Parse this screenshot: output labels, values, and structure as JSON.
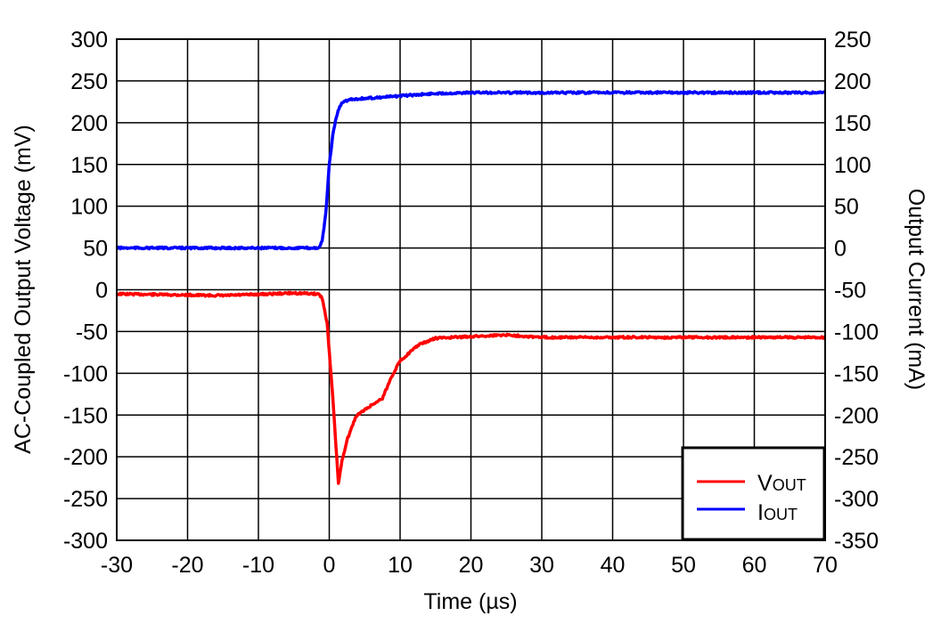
{
  "chart_data": {
    "type": "line",
    "title": "",
    "xlabel": "Time (µs)",
    "ylabel": "AC-Coupled Output Voltage (mV)",
    "y2label": "Output Current (mA)",
    "xlim": [
      -30,
      70
    ],
    "ylim": [
      -300,
      300
    ],
    "y2lim": [
      -350,
      250
    ],
    "xticks": [
      -30,
      -20,
      -10,
      0,
      10,
      20,
      30,
      40,
      50,
      60,
      70
    ],
    "yticks": [
      -300,
      -250,
      -200,
      -150,
      -100,
      -50,
      0,
      50,
      100,
      150,
      200,
      250,
      300
    ],
    "y2ticks": [
      -350,
      -300,
      -250,
      -200,
      -150,
      -100,
      -50,
      0,
      50,
      100,
      150,
      200,
      250
    ],
    "grid": true,
    "legend_position": "bottom-right",
    "series": [
      {
        "name": "VOUT",
        "name_main": "V",
        "name_sub": "OUT",
        "axis": "left",
        "color": "#ff0000",
        "x": [
          -30,
          -15,
          -5,
          -1.5,
          -1,
          -0.3,
          0.5,
          1.3,
          1.8,
          2.5,
          3.8,
          6,
          7.5,
          8.8,
          10,
          12.6,
          15,
          20,
          25,
          30,
          70
        ],
        "y": [
          -5,
          -7,
          -4,
          -5,
          -10,
          -40,
          -130,
          -232,
          -205,
          -180,
          -151,
          -138,
          -130,
          -104,
          -85,
          -66,
          -58,
          -56,
          -54,
          -57,
          -57
        ]
      },
      {
        "name": "IOUT",
        "name_main": "I",
        "name_sub": "OUT",
        "axis": "right",
        "color": "#0000ff",
        "x": [
          -30,
          -1.5,
          -1,
          -0.5,
          0,
          0.5,
          1,
          1.5,
          2,
          3,
          5,
          10,
          15,
          20,
          70
        ],
        "y": [
          0,
          0,
          8,
          40,
          99,
          135,
          157,
          170,
          175,
          178,
          179,
          182,
          185,
          186,
          186
        ]
      }
    ]
  }
}
